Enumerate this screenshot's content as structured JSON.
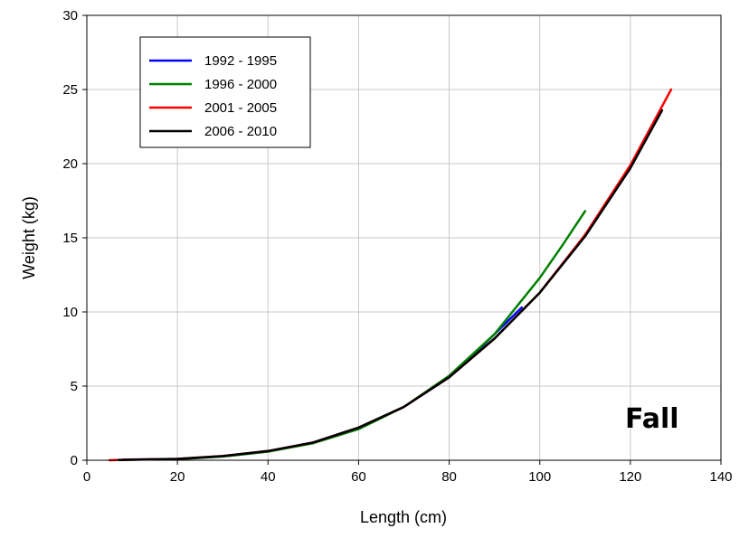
{
  "chart_data": {
    "type": "line",
    "title": "",
    "xlabel": "Length (cm)",
    "ylabel": "Weight (kg)",
    "xlim": [
      0,
      140
    ],
    "ylim": [
      0,
      30
    ],
    "xticks": [
      0,
      20,
      40,
      60,
      80,
      100,
      120,
      140
    ],
    "yticks": [
      0,
      5,
      10,
      15,
      20,
      25,
      30
    ],
    "grid": true,
    "legend_position": "top-left",
    "annotation": "Fall",
    "series": [
      {
        "name": "1992 - 1995",
        "color": "#0000ff",
        "x": [
          8,
          20,
          30,
          40,
          50,
          60,
          70,
          80,
          85,
          90,
          96
        ],
        "y": [
          0.04,
          0.08,
          0.27,
          0.6,
          1.2,
          2.15,
          3.6,
          5.6,
          7.0,
          8.5,
          10.3
        ]
      },
      {
        "name": "1996 - 2000",
        "color": "#008000",
        "x": [
          8,
          20,
          30,
          40,
          50,
          60,
          70,
          80,
          90,
          100,
          105,
          110
        ],
        "y": [
          0.03,
          0.07,
          0.25,
          0.58,
          1.15,
          2.1,
          3.6,
          5.7,
          8.5,
          12.3,
          14.5,
          16.8
        ]
      },
      {
        "name": "2001 - 2005",
        "color": "#ff0000",
        "x": [
          5,
          8,
          20,
          30,
          40,
          50,
          60,
          70,
          80,
          90,
          100,
          110,
          120,
          129
        ],
        "y": [
          0.0,
          0.03,
          0.09,
          0.28,
          0.62,
          1.2,
          2.2,
          3.6,
          5.6,
          8.2,
          11.3,
          15.2,
          19.9,
          25.0
        ]
      },
      {
        "name": "2006 - 2010",
        "color": "#000000",
        "x": [
          7,
          20,
          30,
          40,
          50,
          60,
          70,
          80,
          90,
          100,
          110,
          120,
          127
        ],
        "y": [
          0.02,
          0.09,
          0.28,
          0.62,
          1.2,
          2.2,
          3.6,
          5.6,
          8.2,
          11.3,
          15.1,
          19.7,
          23.6
        ]
      }
    ]
  }
}
